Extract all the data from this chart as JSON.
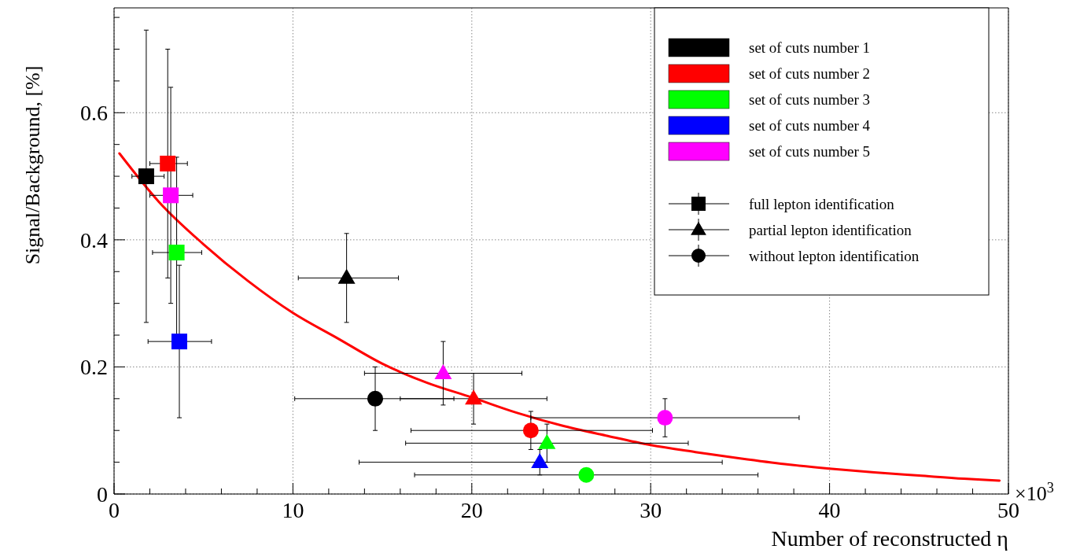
{
  "chart_data": {
    "type": "scatter",
    "ylabel": "Signal/Background, [%]",
    "xlabel": "Number of reconstructed η",
    "annotations": [
      "×10$^{3}$"
    ],
    "xlim": [
      0,
      50
    ],
    "ylim": [
      0,
      0.765
    ],
    "xticks": [
      0,
      {
        "value": 2,
        "label": null
      },
      {
        "value": 4,
        "label": null
      },
      {
        "value": 6,
        "label": null
      },
      {
        "value": 8,
        "label": null
      },
      10,
      {
        "value": 12,
        "label": null
      },
      {
        "value": 14,
        "label": null
      },
      {
        "value": 16,
        "label": null
      },
      {
        "value": 18,
        "label": null
      },
      20,
      {
        "value": 22,
        "label": null
      },
      {
        "value": 24,
        "label": null
      },
      {
        "value": 26,
        "label": null
      },
      {
        "value": 28,
        "label": null
      },
      30,
      {
        "value": 32,
        "label": null
      },
      {
        "value": 34,
        "label": null
      },
      {
        "value": 36,
        "label": null
      },
      {
        "value": 38,
        "label": null
      },
      40,
      {
        "value": 42,
        "label": null
      },
      {
        "value": 44,
        "label": null
      },
      {
        "value": 46,
        "label": null
      },
      {
        "value": 48,
        "label": null
      },
      50
    ],
    "yticks": [
      0,
      {
        "value": 0.05,
        "label": null
      },
      {
        "value": 0.1,
        "label": null
      },
      {
        "value": 0.15,
        "label": null
      },
      0.2,
      {
        "value": 0.25,
        "label": null
      },
      {
        "value": 0.3,
        "label": null
      },
      {
        "value": 0.35,
        "label": null
      },
      0.4,
      {
        "value": 0.45,
        "label": null
      },
      {
        "value": 0.5,
        "label": null
      },
      {
        "value": 0.55,
        "label": null
      },
      0.6,
      {
        "value": 0.65,
        "label": null
      },
      {
        "value": 0.7,
        "label": null
      },
      {
        "value": 0.75,
        "label": null
      }
    ],
    "grid": true,
    "legend": "top right",
    "series": [
      {
        "type": "bar",
        "name": "set of cuts number 1",
        "color": "#000000"
      },
      {
        "type": "bar",
        "name": "set of cuts number 2",
        "color": "#ff0000"
      },
      {
        "type": "bar",
        "name": "set of cuts number 3",
        "color": "#00ff00"
      },
      {
        "type": "bar",
        "name": "set of cuts number 4",
        "color": "#0000ff"
      },
      {
        "type": "bar",
        "name": "set of cuts number 5",
        "color": "#ff00ff"
      },
      {
        "name": "full lepton identification",
        "marker": "square",
        "color": "#000000",
        "colors": [
          "#000000",
          "#ff0000",
          "#00ff00",
          "#0000ff",
          "#ff00ff"
        ],
        "x": [
          1.8,
          3.0,
          3.5,
          3.65,
          3.17
        ],
        "values": [
          0.5,
          0.52,
          0.38,
          0.24,
          0.47
        ],
        "xerrors": [
          [
            1.0,
            2.8
          ],
          [
            2.0,
            4.1
          ],
          [
            2.15,
            4.9
          ],
          [
            1.9,
            5.45
          ],
          [
            2.0,
            4.4
          ]
        ],
        "errors": [
          [
            0.27,
            0.73
          ],
          [
            0.34,
            0.7
          ],
          [
            0.23,
            0.53
          ],
          [
            0.12,
            0.36
          ],
          [
            0.3,
            0.64
          ]
        ]
      },
      {
        "name": "partial lepton identification",
        "marker": "triangle",
        "color": "#000000",
        "colors": [
          "#000000",
          "#ff0000",
          "#00ff00",
          "#0000ff",
          "#ff00ff"
        ],
        "x": [
          13.0,
          20.1,
          24.2,
          23.8,
          18.4
        ],
        "values": [
          0.34,
          0.15,
          0.08,
          0.05,
          0.19
        ],
        "xerrors": [
          [
            10.3,
            15.9
          ],
          [
            16.0,
            24.2
          ],
          [
            16.3,
            32.1
          ],
          [
            13.7,
            34.0
          ],
          [
            14.0,
            22.8
          ]
        ],
        "errors": [
          [
            0.27,
            0.41
          ],
          [
            0.11,
            0.19
          ],
          [
            0.05,
            0.11
          ],
          [
            0.03,
            0.07
          ],
          [
            0.14,
            0.24
          ]
        ]
      },
      {
        "name": "without lepton identification",
        "marker": "circle",
        "color": "#000000",
        "colors": [
          "#000000",
          "#ff0000",
          "#00ff00",
          "#ff00ff"
        ],
        "x": [
          14.6,
          23.3,
          26.4,
          30.8
        ],
        "values": [
          0.15,
          0.1,
          0.03,
          0.12
        ],
        "xerrors": [
          [
            10.1,
            19.0
          ],
          [
            16.6,
            30.1
          ],
          [
            16.8,
            36.0
          ],
          [
            23.3,
            38.3
          ]
        ],
        "errors": [
          [
            0.1,
            0.2
          ],
          [
            0.07,
            0.13
          ],
          null,
          [
            0.09,
            0.15
          ]
        ]
      },
      {
        "type": "line",
        "color": "#ff0000",
        "marker": "none",
        "line_style": "solid",
        "x": [
          0.3,
          2.5,
          5,
          7.5,
          10,
          12.5,
          15,
          17.5,
          20,
          22.5,
          25,
          27.5,
          30,
          32.5,
          35,
          37.5,
          40,
          42.5,
          45,
          47.5,
          49.5
        ],
        "values": [
          0.536,
          0.46,
          0.393,
          0.335,
          0.285,
          0.245,
          0.205,
          0.175,
          0.152,
          0.128,
          0.108,
          0.092,
          0.077,
          0.066,
          0.056,
          0.047,
          0.04,
          0.034,
          0.029,
          0.024,
          0.021
        ]
      }
    ]
  }
}
